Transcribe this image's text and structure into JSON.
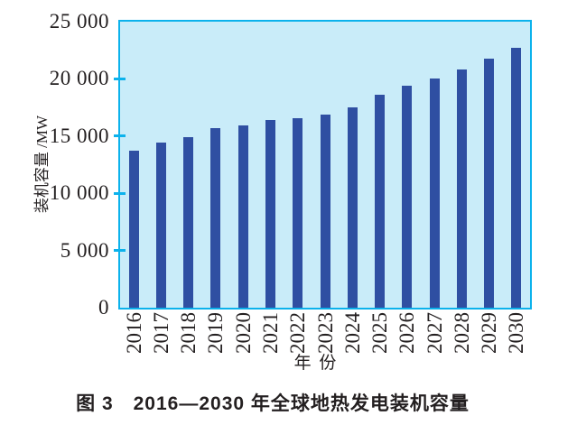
{
  "figure": {
    "caption": "图 3　2016—2030 年全球地热发电装机容量"
  },
  "chart_data": {
    "type": "bar",
    "title": "图 3 2016—2030 年全球地热发电装机容量",
    "xlabel": "年 份",
    "ylabel": "装机容量 /MW",
    "categories": [
      "2016",
      "2017",
      "2018",
      "2019",
      "2020",
      "2021",
      "2022",
      "2023",
      "2024",
      "2025",
      "2026",
      "2027",
      "2028",
      "2029",
      "2030"
    ],
    "values": [
      13700,
      14400,
      14900,
      15700,
      15900,
      16400,
      16600,
      16900,
      17500,
      18600,
      19400,
      20000,
      20800,
      21800,
      22700
    ],
    "ylim": [
      0,
      25000
    ],
    "ytick_interval": 5000,
    "ytick_labels": [
      "0",
      "5 000",
      "10 000",
      "15 000",
      "20 000",
      "25 000"
    ],
    "grid": false,
    "legend": "none",
    "colors": {
      "bar": "#2F4FA2",
      "plot_bg": "#C9ECF9",
      "axis": "#0CB2EC",
      "text": "#231F20"
    }
  }
}
